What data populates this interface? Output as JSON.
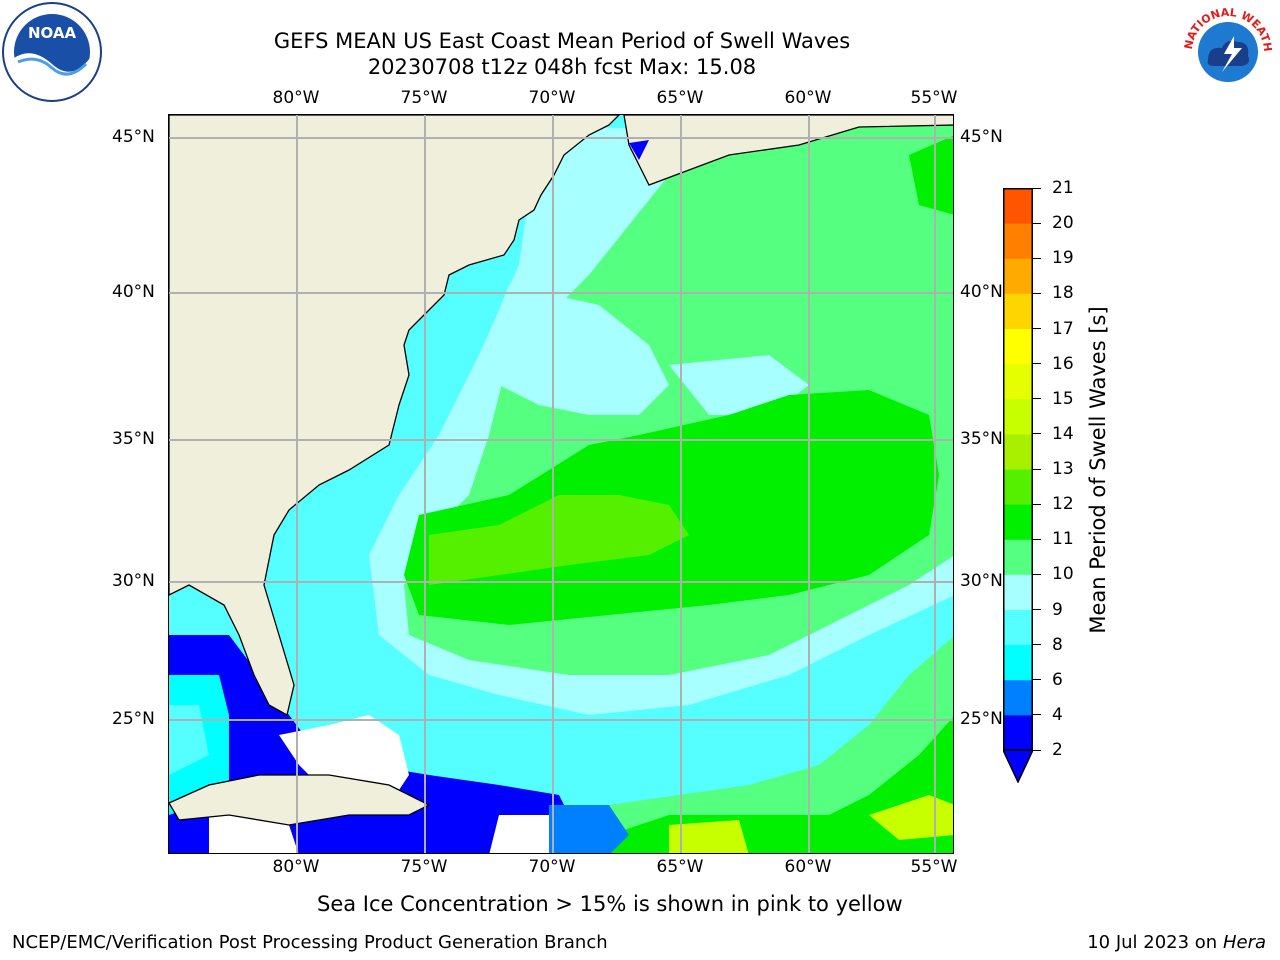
{
  "header": {
    "title_line1": "GEFS MEAN US East Coast Mean Period of Swell Waves",
    "title_line2": "20230708 t12z 048h fcst   Max: 15.08"
  },
  "logos": {
    "left": {
      "icon": "noaa-logo-icon",
      "text": "NOAA"
    },
    "right": {
      "icon": "nws-logo-icon",
      "ring_text": "NATIONAL WEATHER SERVICE"
    }
  },
  "map": {
    "lon_labels": [
      "80°W",
      "75°W",
      "70°W",
      "65°W",
      "60°W",
      "55°W"
    ],
    "lat_labels": [
      "45°N",
      "40°N",
      "35°N",
      "30°N",
      "25°N"
    ],
    "colors": {
      "land": "#efefdc",
      "grid": "#b0b0b0",
      "coast": "#000000"
    }
  },
  "colorbar": {
    "label": "Mean Period of Swell Waves [s]",
    "levels": [
      "2",
      "4",
      "6",
      "8",
      "9",
      "10",
      "11",
      "12",
      "13",
      "14",
      "15",
      "16",
      "17",
      "18",
      "19",
      "20",
      "21"
    ],
    "colors": [
      "#0000ff",
      "#0080ff",
      "#00ffff",
      "#55ffff",
      "#a8ffff",
      "#55ff80",
      "#00f000",
      "#55f000",
      "#a8f000",
      "#c8ff00",
      "#e6ff00",
      "#ffff00",
      "#ffd500",
      "#ffaa00",
      "#ff8000",
      "#ff5500",
      "#ff2a00",
      "#ff0000"
    ],
    "under_color": "#0000ff"
  },
  "caption": "Sea Ice Concentration > 15% is shown in pink to yellow",
  "footer": {
    "left": "NCEP/EMC/Verification Post Processing Product Generation Branch",
    "right_date": "10 Jul 2023 on ",
    "right_host": "Hera"
  }
}
